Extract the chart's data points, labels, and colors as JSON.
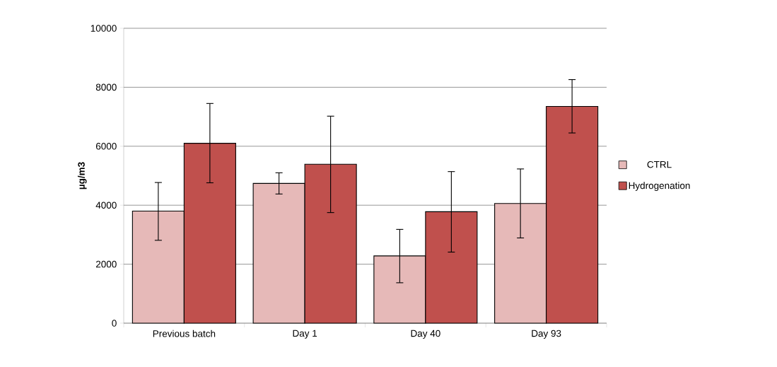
{
  "chart_data": {
    "type": "bar",
    "ylabel": "µg/m3",
    "categories": [
      "Previous batch",
      "Day 1",
      "Day 40",
      "Day 93"
    ],
    "series": [
      {
        "name": "CTRL",
        "color": "#e6b9b8",
        "values": [
          3800,
          4740,
          2280,
          4060
        ],
        "errors": [
          [
            2810,
            4770
          ],
          [
            4380,
            5100
          ],
          [
            1370,
            3180
          ],
          [
            2890,
            5230
          ]
        ]
      },
      {
        "name": "Hydrogenation",
        "color": "#c0504d",
        "values": [
          6100,
          5390,
          3780,
          7350
        ],
        "errors": [
          [
            4760,
            7450
          ],
          [
            3750,
            7020
          ],
          [
            2410,
            5140
          ],
          [
            6450,
            8260
          ]
        ]
      }
    ],
    "ylim": [
      0,
      10000
    ],
    "yticks": [
      0,
      2000,
      4000,
      6000,
      8000,
      10000
    ],
    "grid": "y",
    "legend": "right"
  }
}
